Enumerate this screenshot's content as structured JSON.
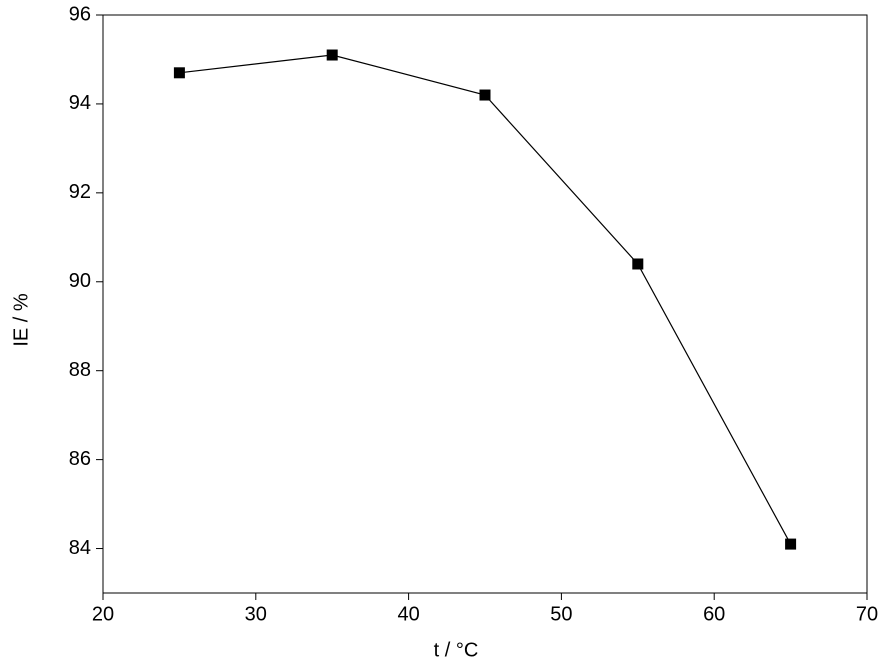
{
  "chart_data": {
    "type": "line",
    "x_label": "t / °C",
    "y_label": "IE / %",
    "x": [
      25,
      35,
      45,
      55,
      65
    ],
    "series": [
      {
        "name": "IE",
        "color": "#000000",
        "values": [
          94.7,
          95.1,
          94.2,
          90.4,
          84.1
        ]
      }
    ],
    "xlim": [
      20,
      70
    ],
    "xticks": [
      20,
      30,
      40,
      50,
      60,
      70
    ],
    "ylim": [
      83,
      96
    ],
    "yticks": [
      84,
      86,
      88,
      90,
      92,
      94,
      96
    ],
    "grid": false,
    "legend": false
  }
}
